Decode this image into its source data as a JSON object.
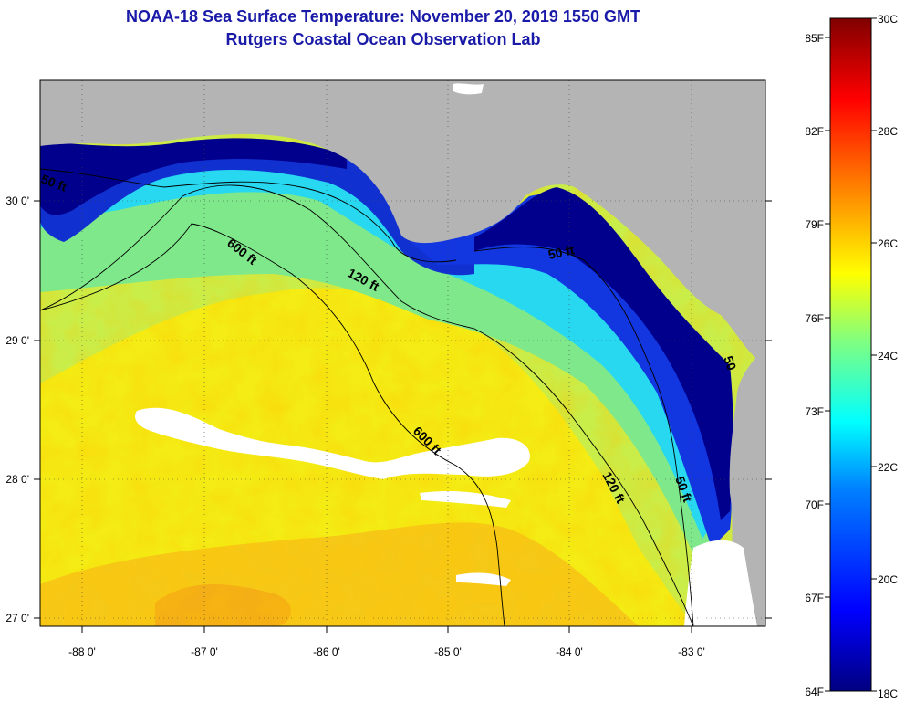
{
  "header": {
    "title": "NOAA-18 Sea Surface Temperature:  November 20, 2019 1550 GMT",
    "subtitle": "Rutgers Coastal Ocean Observation Lab"
  },
  "map": {
    "region": "Northeastern Gulf of Mexico / Florida Big Bend",
    "longitude_ticks": [
      "-88 0'",
      "-87 0'",
      "-86 0'",
      "-85 0'",
      "-84 0'",
      "-83 0'"
    ],
    "latitude_ticks": [
      "30 0'",
      "29 0'",
      "28 0'",
      "27 0'"
    ],
    "contour_labels": [
      {
        "text": "50 ft"
      },
      {
        "text": "600 ft"
      },
      {
        "text": "120 ft"
      },
      {
        "text": "50 ft"
      },
      {
        "text": "600 ft"
      },
      {
        "text": "120 ft"
      },
      {
        "text": "50 ft"
      },
      {
        "text": "50"
      }
    ],
    "land_color": "#b4b4b4",
    "cloud_color": "#ffffff"
  },
  "colorbar": {
    "celsius_labels": [
      "30C",
      "28C",
      "26C",
      "24C",
      "22C",
      "20C",
      "18C"
    ],
    "fahrenheit_labels": [
      "85F",
      "82F",
      "79F",
      "76F",
      "73F",
      "70F",
      "67F",
      "64F"
    ],
    "range_c": [
      18,
      30
    ],
    "colormap": [
      "#000080",
      "#0000ff",
      "#0080ff",
      "#00ffff",
      "#80ff80",
      "#ffff00",
      "#ff8000",
      "#ff0000",
      "#800000"
    ]
  }
}
